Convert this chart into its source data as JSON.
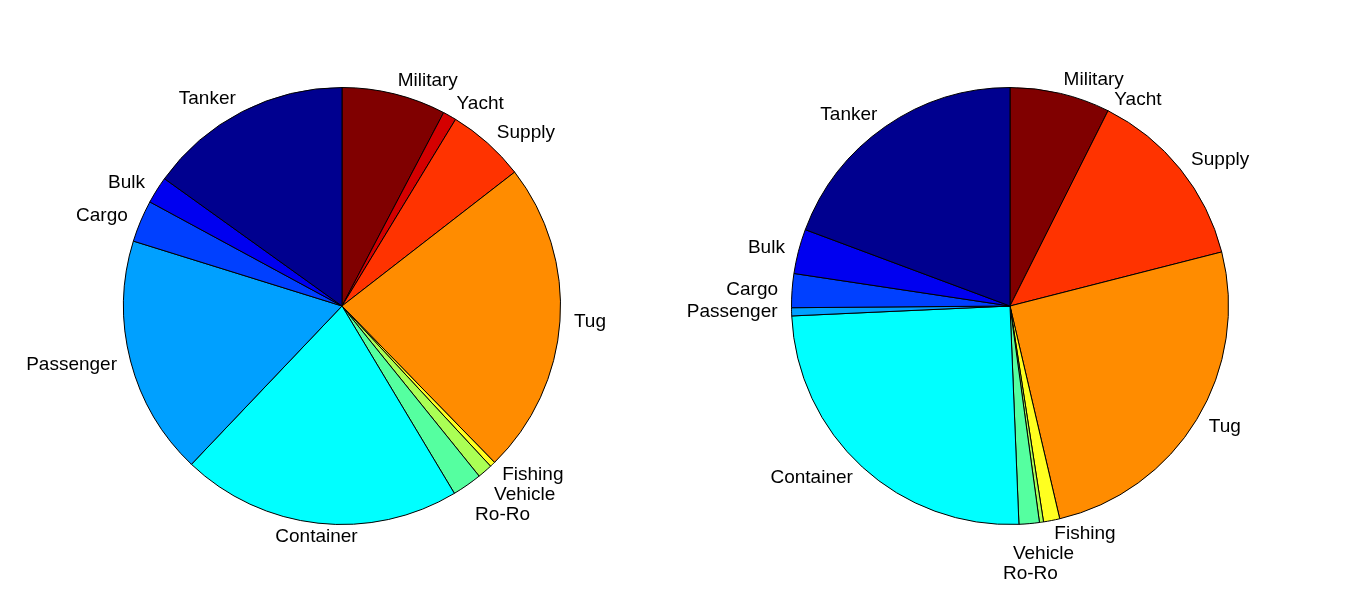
{
  "chart_data": [
    {
      "type": "pie",
      "categories": [
        "Military",
        "Yacht",
        "Supply",
        "Tug",
        "Fishing",
        "Vehicle",
        "Ro-Ro",
        "Container",
        "Passenger",
        "Cargo",
        "Bulk",
        "Tanker"
      ],
      "values": [
        7.7,
        1.0,
        5.8,
        23.2,
        0.4,
        1.1,
        2.2,
        20.7,
        17.7,
        3.1,
        2.0,
        15.1
      ],
      "colors": [
        "#800000",
        "#d40000",
        "#ff3300",
        "#ff8c00",
        "#ffff20",
        "#aaff55",
        "#55ffa0",
        "#00ffff",
        "#00a0ff",
        "#0040ff",
        "#0000f0",
        "#00008f"
      ],
      "legend": false
    },
    {
      "type": "pie",
      "categories": [
        "Military",
        "Yacht",
        "Supply",
        "Tug",
        "Fishing",
        "Vehicle",
        "Ro-Ro",
        "Container",
        "Passenger",
        "Cargo",
        "Bulk",
        "Tanker"
      ],
      "values": [
        7.4,
        null,
        13.6,
        25.3,
        1.2,
        0.3,
        1.5,
        24.9,
        0.6,
        2.5,
        3.3,
        19.3
      ],
      "colors": [
        "#800000",
        "#d40000",
        "#ff3300",
        "#ff8c00",
        "#ffff20",
        "#aaff55",
        "#55ffa0",
        "#00ffff",
        "#00a0ff",
        "#0040ff",
        "#0000f0",
        "#00008f"
      ],
      "legend": false
    }
  ]
}
